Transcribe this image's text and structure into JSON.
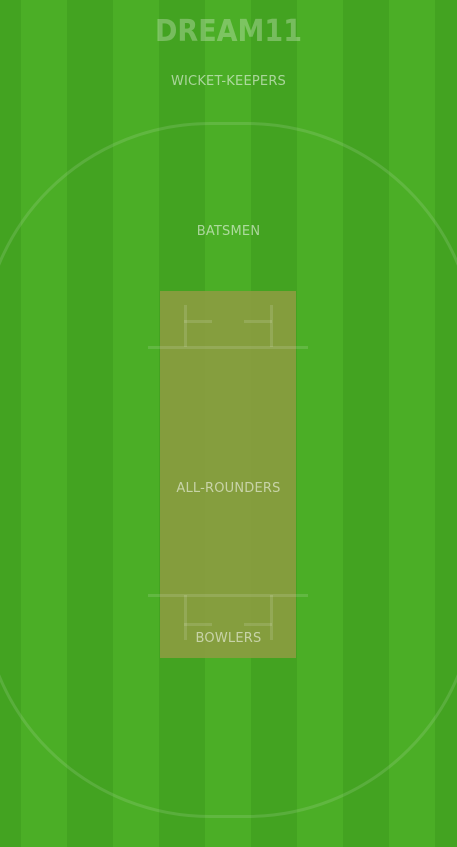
{
  "brand": {
    "logo_text": "DREAM11"
  },
  "zones": {
    "wicket_keepers": "WICKET-KEEPERS",
    "batsmen": "BATSMEN",
    "all_rounders": "ALL-ROUNDERS",
    "bowlers": "BOWLERS"
  },
  "colors": {
    "grass_dark": "#43a321",
    "grass_light": "#4bae26",
    "pitch": "#8a9c40"
  }
}
